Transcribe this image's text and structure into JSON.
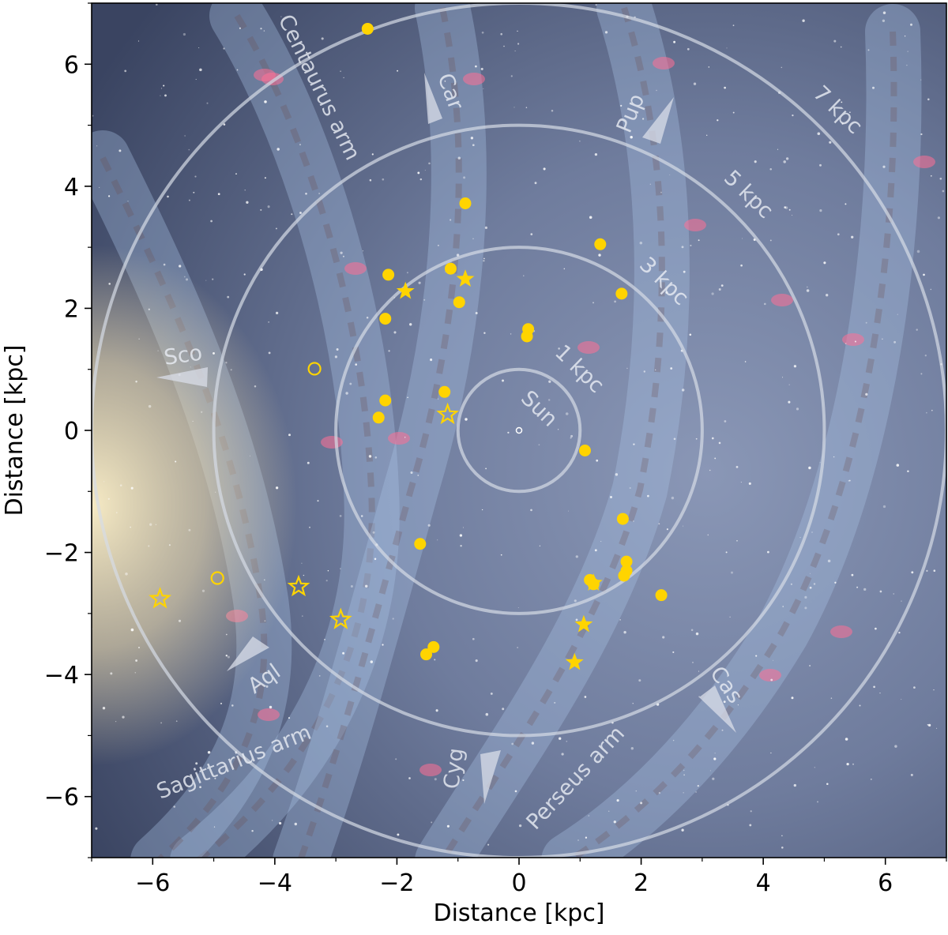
{
  "chart_data": {
    "type": "scatter",
    "title": "",
    "xlabel": "Distance [kpc]",
    "ylabel": "Distance [kpc]",
    "xlim": [
      -7,
      7
    ],
    "ylim": [
      -7,
      7
    ],
    "xticks": [
      -6,
      -4,
      -2,
      0,
      2,
      4,
      6
    ],
    "yticks": [
      -6,
      -4,
      -2,
      0,
      2,
      4,
      6
    ],
    "xtick_labels": [
      "−6",
      "−4",
      "−2",
      "0",
      "2",
      "4",
      "6"
    ],
    "ytick_labels": [
      "−6",
      "−4",
      "−2",
      "0",
      "2",
      "4",
      "6"
    ],
    "grid": false,
    "legend": "none",
    "background": "artist's impression of the Milky Way seen from above, Sun at the origin",
    "marker_color": "#FFD400",
    "ring_color": "#d6dbe6",
    "rings": [
      {
        "radius": 1,
        "label": "1 kpc"
      },
      {
        "radius": 3,
        "label": "3 kpc"
      },
      {
        "radius": 5,
        "label": "5 kpc"
      },
      {
        "radius": 7,
        "label": "7 kpc"
      }
    ],
    "center_label": "Sun",
    "arm_labels": [
      "Centaurus arm",
      "Sagittarius arm",
      "Perseus arm"
    ],
    "constellation_labels": [
      "Car",
      "Pup",
      "Sco",
      "Aql",
      "Cyg",
      "Cas"
    ],
    "series": [
      {
        "marker": "filled-circle",
        "points": [
          [
            -2.48,
            6.58
          ],
          [
            -0.88,
            3.72
          ],
          [
            1.33,
            3.05
          ],
          [
            -2.14,
            2.55
          ],
          [
            -1.12,
            2.65
          ],
          [
            1.68,
            2.24
          ],
          [
            -0.98,
            2.1
          ],
          [
            -2.19,
            1.83
          ],
          [
            0.15,
            1.66
          ],
          [
            0.13,
            1.54
          ],
          [
            -1.22,
            0.63
          ],
          [
            -2.19,
            0.49
          ],
          [
            -2.3,
            0.21
          ],
          [
            1.08,
            -0.33
          ],
          [
            1.7,
            -1.45
          ],
          [
            -1.62,
            -1.86
          ],
          [
            1.76,
            -2.15
          ],
          [
            1.76,
            -2.3
          ],
          [
            1.72,
            -2.38
          ],
          [
            1.16,
            -2.45
          ],
          [
            1.22,
            -2.52
          ],
          [
            2.33,
            -2.7
          ],
          [
            -1.4,
            -3.55
          ],
          [
            -1.52,
            -3.67
          ]
        ]
      },
      {
        "marker": "filled-star",
        "points": [
          [
            -0.88,
            2.48
          ],
          [
            -1.86,
            2.28
          ],
          [
            1.22,
            -2.5
          ],
          [
            1.06,
            -3.18
          ],
          [
            0.91,
            -3.8
          ]
        ]
      },
      {
        "marker": "open-circle",
        "points": [
          [
            -3.35,
            1.01
          ],
          [
            -4.94,
            -2.42
          ]
        ]
      },
      {
        "marker": "open-star",
        "points": [
          [
            -1.17,
            0.26
          ],
          [
            -3.61,
            -2.56
          ],
          [
            -5.88,
            -2.76
          ],
          [
            -2.92,
            -3.1
          ]
        ]
      }
    ]
  }
}
